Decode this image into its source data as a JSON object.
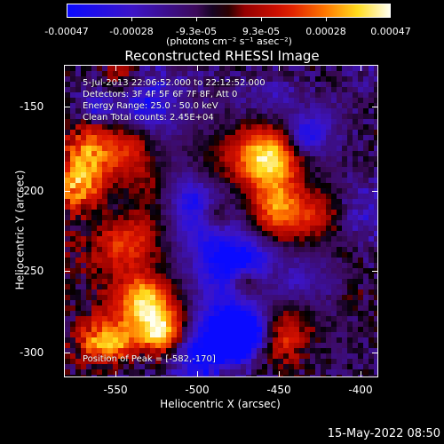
{
  "colorbar": {
    "ticks": [
      "-0.00047",
      "-0.00028",
      "-9.3e-05",
      "9.3e-05",
      "0.00028",
      "0.00047"
    ],
    "units": "(photons cm⁻² s⁻¹ asec⁻²)"
  },
  "title": "Reconstructed RHESSI Image",
  "info": {
    "time": "5-Jul-2013 22:06:52.000 to 22:12:52.000",
    "detectors": "Detectors: 3F 4F 5F 6F 7F 8F, Att 0",
    "energy": "Energy Range: 25.0 - 50.0 keV",
    "clean": "Clean    Total counts: 2.45E+04",
    "peak": "Position of Peak = [-582,-170]"
  },
  "axes": {
    "x_label": "Heliocentric X (arcsec)",
    "y_label": "Heliocentric Y (arcsec)",
    "x_ticks": [
      "-550",
      "-500",
      "-450",
      "-400"
    ],
    "y_ticks": [
      "-150",
      "-200",
      "-250",
      "-300"
    ]
  },
  "datestamp": "15-May-2022 08:50"
}
